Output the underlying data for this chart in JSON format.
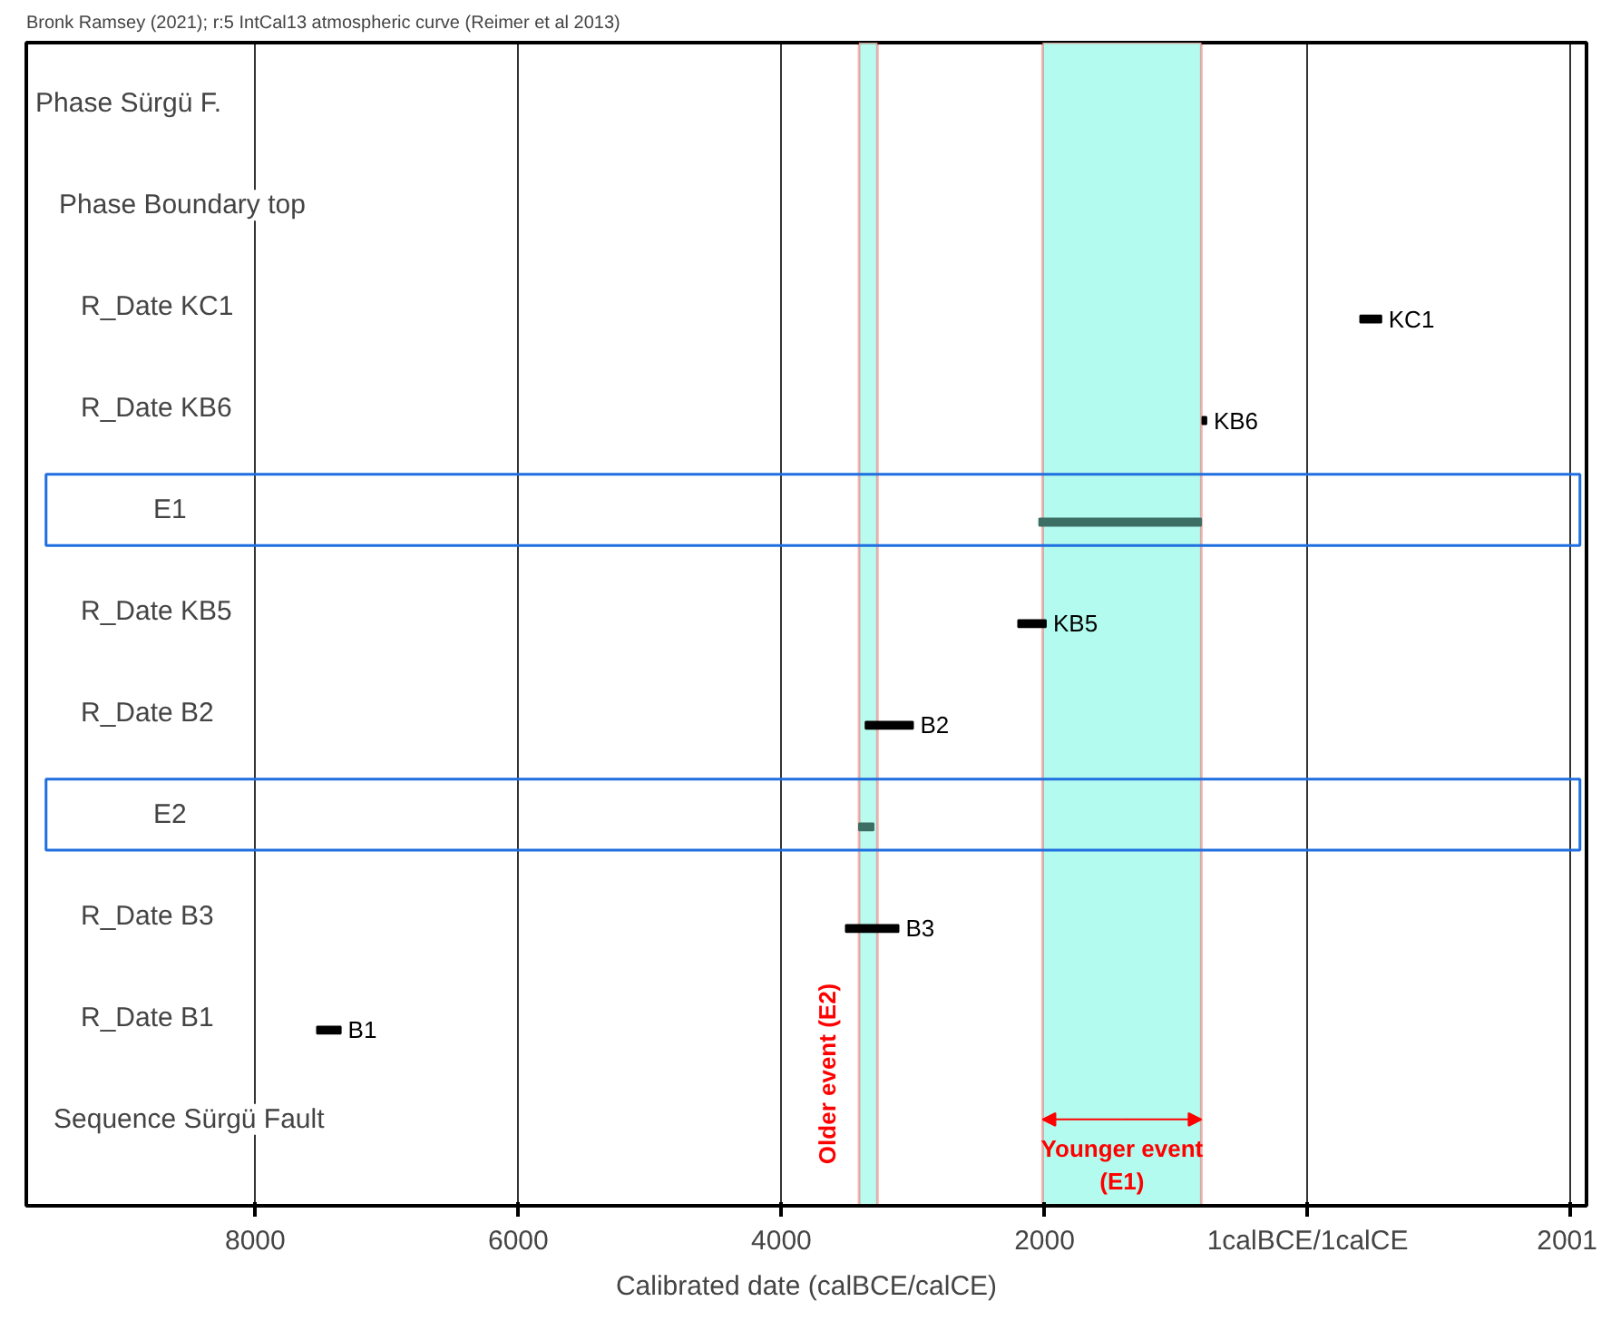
{
  "chart_data": {
    "type": "bar",
    "orientation": "horizontal",
    "xlabel": "Calibrated date (calBCE/calCE)",
    "categories": [
      "Phase Sürgü F.",
      "Phase Boundary top",
      "R_Date KC1",
      "R_Date KB6",
      "E1",
      "R_Date KB5",
      "R_Date B2",
      "E2",
      "R_Date B3",
      "R_Date B1",
      "Sequence Sürgü Fault"
    ],
    "base": [
      null,
      null,
      400,
      -800,
      -2040,
      -2200,
      -3360,
      -3410,
      -3510,
      -7530,
      null
    ],
    "values": [
      null,
      null,
      160,
      30,
      1230,
      210,
      360,
      110,
      400,
      180,
      null
    ],
    "colors": [
      "#000000",
      "#000000",
      "#000000",
      "#000000",
      "#3c6e64",
      "#000000",
      "#000000",
      "#3c6e64",
      "#000000",
      "#000000",
      "#000000"
    ],
    "value_labels": [
      null,
      null,
      "KC1",
      "KB6",
      null,
      "KB5",
      "B2",
      null,
      "B3",
      "B1",
      null
    ],
    "xlim": [
      -9740,
      2120
    ],
    "xticks": [
      {
        "value": -8000,
        "label": "8000"
      },
      {
        "value": -6000,
        "label": "6000"
      },
      {
        "value": -4000,
        "label": "4000"
      },
      {
        "value": -2000,
        "label": "2000"
      },
      {
        "value": 0,
        "label": "1calBCE/1calCE"
      },
      2001
    ],
    "grid": "x",
    "bands": [
      {
        "axis": "x",
        "from": -3410,
        "to": -3270,
        "label": "Older event (E2)",
        "color": "#b3fbee"
      },
      {
        "axis": "x",
        "from": -2014,
        "to": -808,
        "label": "Younger event (E1)",
        "color": "#b3fbee"
      }
    ],
    "annotations": [
      "Bronk Ramsey (2021); r:5 IntCal13 atmospheric curve (Reimer et al 2013)"
    ]
  }
}
